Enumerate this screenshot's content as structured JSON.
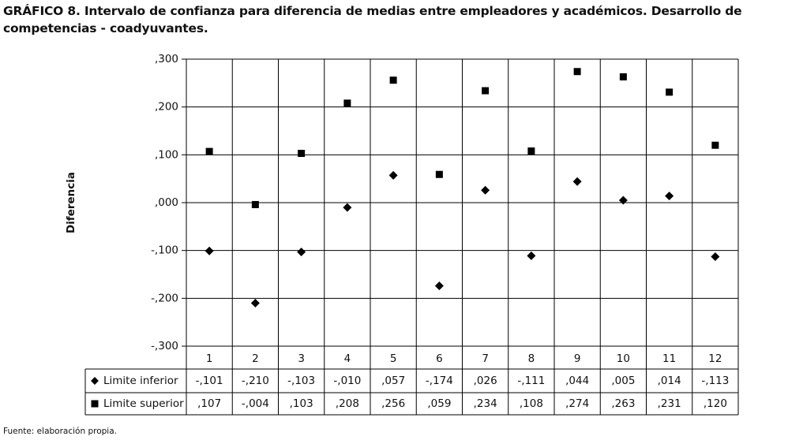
{
  "chart_data": {
    "type": "scatter",
    "title": "GRÁFICO 8. Intervalo de confianza para diferencia de medias entre empleadores y académicos. Desarrollo de competencias - coadyuvantes.",
    "y_label": "Diferencia",
    "source": "Fuente: elaboración propia.",
    "categories": [
      "1",
      "2",
      "3",
      "4",
      "5",
      "6",
      "7",
      "8",
      "9",
      "10",
      "11",
      "12"
    ],
    "ylim": [
      -0.3,
      0.3
    ],
    "yticks": [
      {
        "value": 0.3,
        "label": ",300"
      },
      {
        "value": 0.2,
        "label": ",200"
      },
      {
        "value": 0.1,
        "label": ",100"
      },
      {
        "value": 0,
        "label": ",000"
      },
      {
        "value": -0.1,
        "label": "-,100"
      },
      {
        "value": -0.2,
        "label": "-,200"
      },
      {
        "value": -0.3,
        "label": "-,300"
      }
    ],
    "grid": true,
    "series": [
      {
        "name": "Limite inferior",
        "color": "#000000",
        "marker": "diamond",
        "values": [
          -0.101,
          -0.21,
          -0.103,
          -0.01,
          0.057,
          -0.174,
          0.026,
          -0.111,
          0.044,
          0.005,
          0.014,
          -0.113
        ],
        "value_labels": [
          "-,101",
          "-,210",
          "-,103",
          "-,010",
          ",057",
          "-,174",
          ",026",
          "-,111",
          ",044",
          ",005",
          ",014",
          "-,113"
        ]
      },
      {
        "name": "Limite superior",
        "color": "#000000",
        "marker": "square",
        "values": [
          0.107,
          -0.004,
          0.103,
          0.208,
          0.256,
          0.059,
          0.234,
          0.108,
          0.274,
          0.263,
          0.231,
          0.12
        ],
        "value_labels": [
          ",107",
          "-,004",
          ",103",
          ",208",
          ",256",
          ",059",
          ",234",
          ",108",
          ",274",
          ",263",
          ",231",
          ",120"
        ]
      }
    ]
  }
}
